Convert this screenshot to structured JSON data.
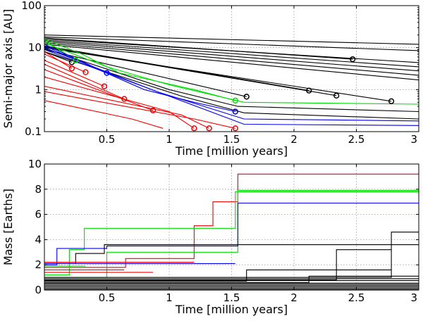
{
  "chart_data": [
    {
      "type": "line",
      "title": "",
      "xlabel": "Time [million years]",
      "ylabel": "Semi-major axis [AU]",
      "xscale": "linear",
      "yscale": "log",
      "xlim": [
        0,
        3
      ],
      "ylim": [
        0.1,
        100
      ],
      "xticks": [
        0.5,
        1,
        1.5,
        2,
        2.5,
        3
      ],
      "xtick_labels": [
        "0.5",
        "1",
        "1.5",
        "2",
        "2.5",
        "3"
      ],
      "yticks": [
        0.1,
        1,
        10,
        100
      ],
      "ytick_labels": [
        "0.1",
        "1",
        "10",
        "100"
      ],
      "grid": true,
      "legend": "none",
      "colors": {
        "black": "#000000",
        "green": "#00dd00",
        "blue": "#0000ee",
        "red": "#ee0000"
      },
      "series": [
        {
          "color": "black",
          "x": [
            0,
            3
          ],
          "y": [
            20,
            12
          ],
          "end_marker": false
        },
        {
          "color": "black",
          "x": [
            0,
            3
          ],
          "y": [
            18,
            8.5
          ],
          "end_marker": false
        },
        {
          "color": "black",
          "x": [
            0,
            2.47
          ],
          "y": [
            17,
            5.3
          ],
          "end_marker": true
        },
        {
          "color": "black",
          "x": [
            0,
            3
          ],
          "y": [
            16,
            4.4
          ],
          "end_marker": false
        },
        {
          "color": "black",
          "x": [
            0,
            3
          ],
          "y": [
            15,
            3.5
          ],
          "end_marker": false
        },
        {
          "color": "black",
          "x": [
            0,
            3
          ],
          "y": [
            14,
            2.8
          ],
          "end_marker": false
        },
        {
          "color": "black",
          "x": [
            0,
            3
          ],
          "y": [
            13,
            2.2
          ],
          "end_marker": false
        },
        {
          "color": "black",
          "x": [
            0,
            3
          ],
          "y": [
            12,
            1.7
          ],
          "end_marker": false
        },
        {
          "color": "black",
          "x": [
            0,
            2.12
          ],
          "y": [
            11,
            0.95
          ],
          "end_marker": true
        },
        {
          "color": "black",
          "x": [
            0,
            2.34
          ],
          "y": [
            10.5,
            0.72
          ],
          "end_marker": true
        },
        {
          "color": "black",
          "x": [
            0,
            2.78
          ],
          "y": [
            10,
            0.53
          ],
          "end_marker": true
        },
        {
          "color": "black",
          "x": [
            0,
            1.62
          ],
          "y": [
            9,
            0.68
          ],
          "end_marker": true
        },
        {
          "color": "black",
          "x": [
            0,
            1.0,
            1.55,
            3
          ],
          "y": [
            9.5,
            1.0,
            0.4,
            0.3
          ],
          "end_marker": false
        },
        {
          "color": "black",
          "x": [
            0,
            1.1,
            1.6,
            3
          ],
          "y": [
            8,
            0.7,
            0.28,
            0.2
          ],
          "end_marker": false
        },
        {
          "color": "black",
          "x": [
            0,
            0.22
          ],
          "y": [
            8,
            4.5
          ],
          "end_marker": true
        },
        {
          "color": "green",
          "x": [
            0,
            0.3,
            0.6,
            1.2,
            1.53
          ],
          "y": [
            16,
            7,
            2.5,
            1.0,
            0.55
          ],
          "end_marker": true
        },
        {
          "color": "green",
          "x": [
            0,
            0.5,
            1.0,
            1.6,
            3
          ],
          "y": [
            13,
            3.5,
            1.3,
            0.5,
            0.45
          ],
          "end_marker": false
        },
        {
          "color": "green",
          "x": [
            0,
            0.25
          ],
          "y": [
            15,
            5
          ],
          "end_marker": true
        },
        {
          "color": "blue",
          "x": [
            0,
            0.5
          ],
          "y": [
            12,
            2.5
          ],
          "end_marker": true
        },
        {
          "color": "blue",
          "x": [
            0,
            0.8,
            1.2,
            1.53
          ],
          "y": [
            11,
            1.0,
            0.5,
            0.3
          ],
          "end_marker": true
        },
        {
          "color": "blue",
          "x": [
            0,
            0.9,
            1.6,
            3
          ],
          "y": [
            10,
            0.9,
            0.2,
            0.18
          ],
          "end_marker": false
        },
        {
          "color": "blue",
          "x": [
            0,
            1.0,
            1.6,
            3
          ],
          "y": [
            9,
            0.7,
            0.15,
            0.14
          ],
          "end_marker": false
        },
        {
          "color": "red",
          "x": [
            0,
            0.22
          ],
          "y": [
            8,
            3.2
          ],
          "end_marker": true
        },
        {
          "color": "red",
          "x": [
            0,
            0.33
          ],
          "y": [
            7,
            2.6
          ],
          "end_marker": true
        },
        {
          "color": "red",
          "x": [
            0,
            0.48
          ],
          "y": [
            5,
            1.2
          ],
          "end_marker": true
        },
        {
          "color": "red",
          "x": [
            0,
            0.64
          ],
          "y": [
            4,
            0.6
          ],
          "end_marker": true
        },
        {
          "color": "red",
          "x": [
            0,
            0.87
          ],
          "y": [
            3,
            0.32
          ],
          "end_marker": true
        },
        {
          "color": "red",
          "x": [
            0,
            1.0,
            1.2
          ],
          "y": [
            2,
            0.3,
            0.12
          ],
          "end_marker": true
        },
        {
          "color": "red",
          "x": [
            0,
            1.1,
            1.32
          ],
          "y": [
            1.2,
            0.25,
            0.12
          ],
          "end_marker": true
        },
        {
          "color": "red",
          "x": [
            0,
            1.2,
            1.53
          ],
          "y": [
            0.9,
            0.2,
            0.12
          ],
          "end_marker": true
        },
        {
          "color": "red",
          "x": [
            0,
            0.7,
            0.95
          ],
          "y": [
            0.55,
            0.2,
            0.12
          ],
          "end_marker": false
        }
      ]
    },
    {
      "type": "line",
      "title": "",
      "xlabel": "Time [million years]",
      "ylabel": "Mass [Earths]",
      "xscale": "linear",
      "yscale": "linear",
      "xlim": [
        0,
        3
      ],
      "ylim": [
        0,
        10
      ],
      "xticks": [
        0.5,
        1,
        1.5,
        2,
        2.5,
        3
      ],
      "xtick_labels": [
        "0.5",
        "1",
        "1.5",
        "2",
        "2.5",
        "3"
      ],
      "yticks": [
        0,
        2,
        4,
        6,
        8,
        10
      ],
      "ytick_labels": [
        "0",
        "2",
        "4",
        "6",
        "8",
        "10"
      ],
      "grid": true,
      "legend": "none",
      "series": [
        {
          "color": "red",
          "x": [
            0,
            0.65,
            0.65,
            1.2,
            1.2,
            1.35,
            1.35,
            1.55,
            1.55,
            3
          ],
          "y": [
            1.8,
            1.8,
            2.5,
            2.5,
            5.1,
            5.1,
            7.0,
            7.0,
            9.2,
            9.2
          ]
        },
        {
          "color": "green",
          "x": [
            0,
            0.2,
            0.2,
            0.32,
            0.32,
            1.53,
            1.53,
            3
          ],
          "y": [
            1.2,
            1.2,
            3.2,
            3.2,
            4.9,
            4.9,
            7.8,
            7.8
          ]
        },
        {
          "color": "green",
          "x": [
            0,
            0.5,
            0.5,
            1.55,
            1.55,
            3
          ],
          "y": [
            1.0,
            1.0,
            3.0,
            3.0,
            7.9,
            7.9
          ]
        },
        {
          "color": "blue",
          "x": [
            0,
            0.1,
            0.1,
            0.5,
            0.5,
            1.55,
            1.55,
            3
          ],
          "y": [
            2.0,
            2.0,
            3.3,
            3.3,
            3.5,
            3.5,
            6.9,
            6.9
          ]
        },
        {
          "color": "black",
          "x": [
            0,
            0.25,
            0.25,
            0.48,
            0.48,
            3
          ],
          "y": [
            2.1,
            2.1,
            2.9,
            2.9,
            3.6,
            3.6
          ]
        },
        {
          "color": "black",
          "x": [
            0,
            2.78,
            2.78,
            3
          ],
          "y": [
            1.0,
            1.0,
            4.6,
            4.6
          ]
        },
        {
          "color": "black",
          "x": [
            0,
            2.34,
            2.34,
            2.78
          ],
          "y": [
            0.8,
            0.8,
            3.2,
            3.2
          ]
        },
        {
          "color": "black",
          "x": [
            0,
            2.12,
            2.12,
            3
          ],
          "y": [
            0.6,
            0.6,
            1.1,
            1.1
          ]
        },
        {
          "color": "black",
          "x": [
            0,
            1.62,
            1.62,
            2.78
          ],
          "y": [
            0.7,
            0.7,
            1.6,
            1.6
          ]
        },
        {
          "color": "black",
          "x": [
            0,
            3
          ],
          "y": [
            0.05,
            0.05
          ]
        },
        {
          "color": "black",
          "x": [
            0,
            3
          ],
          "y": [
            0.15,
            0.15
          ]
        },
        {
          "color": "black",
          "x": [
            0,
            3
          ],
          "y": [
            0.25,
            0.25
          ]
        },
        {
          "color": "black",
          "x": [
            0,
            3
          ],
          "y": [
            0.35,
            0.35
          ]
        },
        {
          "color": "black",
          "x": [
            0,
            3
          ],
          "y": [
            0.45,
            0.45
          ]
        },
        {
          "color": "black",
          "x": [
            0,
            3
          ],
          "y": [
            0.55,
            0.55
          ]
        },
        {
          "color": "black",
          "x": [
            0,
            3
          ],
          "y": [
            0.75,
            0.75
          ]
        },
        {
          "color": "black",
          "x": [
            0,
            3
          ],
          "y": [
            0.9,
            0.9
          ]
        },
        {
          "color": "red",
          "x": [
            0,
            1.2
          ],
          "y": [
            2.2,
            2.2
          ]
        },
        {
          "color": "blue",
          "x": [
            0,
            1.53
          ],
          "y": [
            2.1,
            2.1
          ]
        },
        {
          "color": "red",
          "x": [
            0,
            0.64
          ],
          "y": [
            1.6,
            1.6
          ]
        },
        {
          "color": "red",
          "x": [
            0,
            0.87
          ],
          "y": [
            1.4,
            1.4
          ]
        },
        {
          "color": "green",
          "x": [
            0,
            0.33
          ],
          "y": [
            1.9,
            1.9
          ]
        }
      ]
    }
  ]
}
